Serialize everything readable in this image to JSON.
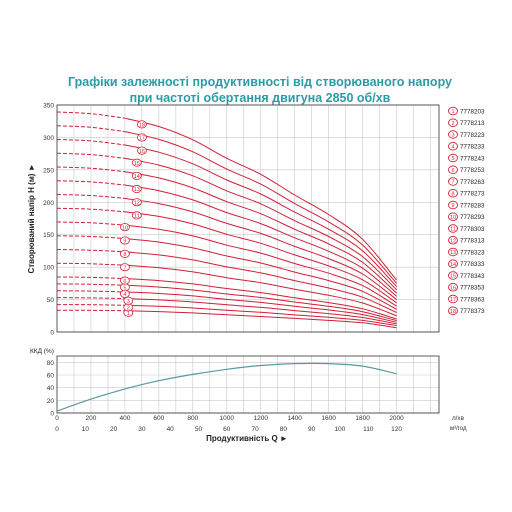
{
  "title_line1": "Графіки залежності продуктивності від створюваного напору",
  "title_line2": "при частоті обертання двигуна 2850 об/хв",
  "chart_data": [
    {
      "type": "line",
      "ylabel": "Створюваний напір H (м)",
      "ylim": [
        0,
        350
      ],
      "yticks": [
        0,
        50,
        100,
        150,
        200,
        250,
        300,
        350
      ],
      "xlim": [
        0,
        2250
      ],
      "x": [
        0,
        200,
        400,
        600,
        800,
        1000,
        1200,
        1400,
        1600,
        1800,
        2000
      ],
      "grid": true,
      "line_color": "#d11f35",
      "series": [
        {
          "name": "1",
          "model": "7778203",
          "values": [
            33.6,
            33.4,
            32.8,
            31.4,
            29.4,
            26.5,
            23.9,
            20.9,
            17.9,
            14.2,
            6.6
          ]
        },
        {
          "name": "2",
          "model": "7778213",
          "values": [
            42.3,
            42.1,
            41.1,
            39.6,
            37.0,
            33.4,
            30.3,
            26.4,
            22.6,
            17.9,
            10.0
          ]
        },
        {
          "name": "3",
          "model": "7778223",
          "values": [
            53.0,
            52.6,
            51.5,
            49.5,
            46.3,
            41.9,
            38.0,
            33.0,
            28.3,
            22.3,
            12.5
          ]
        },
        {
          "name": "4",
          "model": "7778233",
          "values": [
            63.6,
            63.1,
            61.8,
            59.4,
            55.6,
            50.2,
            45.6,
            39.6,
            34.0,
            26.8,
            15.0
          ]
        },
        {
          "name": "5",
          "model": "7778243",
          "values": [
            74.2,
            73.6,
            72.1,
            69.3,
            64.8,
            58.6,
            53.2,
            46.2,
            39.6,
            31.3,
            17.5
          ]
        },
        {
          "name": "6",
          "model": "7778253",
          "values": [
            84.8,
            84.2,
            82.4,
            79.2,
            74.1,
            67.0,
            60.8,
            52.8,
            45.3,
            35.8,
            20.0
          ]
        },
        {
          "name": "7",
          "model": "7778263",
          "values": [
            106.0,
            105.2,
            103.0,
            99.0,
            92.6,
            83.7,
            76.0,
            66.0,
            56.6,
            44.7,
            25.0
          ]
        },
        {
          "name": "8",
          "model": "7778273",
          "values": [
            127.2,
            126.2,
            123.6,
            118.8,
            111.1,
            100.4,
            91.2,
            79.2,
            67.9,
            53.6,
            30.0
          ]
        },
        {
          "name": "9",
          "model": "7778283",
          "values": [
            148.4,
            147.3,
            144.2,
            138.6,
            129.7,
            117.2,
            106.4,
            92.4,
            79.2,
            62.6,
            35.0
          ]
        },
        {
          "name": "10",
          "model": "7778293",
          "values": [
            169.6,
            168.3,
            164.8,
            158.4,
            148.2,
            133.9,
            121.6,
            105.6,
            90.6,
            71.5,
            40.0
          ]
        },
        {
          "name": "11",
          "model": "7778303",
          "values": [
            190.8,
            189.4,
            185.4,
            178.2,
            166.7,
            150.7,
            136.8,
            118.8,
            101.9,
            80.5,
            45.0
          ]
        },
        {
          "name": "12",
          "model": "7778313",
          "values": [
            212.0,
            210.4,
            206.0,
            198.0,
            185.2,
            167.4,
            152.0,
            132.0,
            113.2,
            89.4,
            50.0
          ]
        },
        {
          "name": "13",
          "model": "7778323",
          "values": [
            233.2,
            231.4,
            226.6,
            217.8,
            203.7,
            184.1,
            167.2,
            145.2,
            124.5,
            98.3,
            55.0
          ]
        },
        {
          "name": "14",
          "model": "7778333",
          "values": [
            254.4,
            252.5,
            247.2,
            237.6,
            222.2,
            200.9,
            182.4,
            158.4,
            135.8,
            107.3,
            60.0
          ]
        },
        {
          "name": "15",
          "model": "7778343",
          "values": [
            275.6,
            273.5,
            267.8,
            257.4,
            240.8,
            217.6,
            197.6,
            171.6,
            147.2,
            116.2,
            65.0
          ]
        },
        {
          "name": "16",
          "model": "7778353",
          "values": [
            296.8,
            294.6,
            288.4,
            277.2,
            259.3,
            234.4,
            212.8,
            184.8,
            158.5,
            125.2,
            70.0
          ]
        },
        {
          "name": "17",
          "model": "7778363",
          "values": [
            318.0,
            315.6,
            309.0,
            297.0,
            277.8,
            251.1,
            228.0,
            198.0,
            169.8,
            134.1,
            75.0
          ]
        },
        {
          "name": "18",
          "model": "7778373",
          "values": [
            339.2,
            336.6,
            329.6,
            316.8,
            296.3,
            267.8,
            243.2,
            211.2,
            181.1,
            143.0,
            80.0
          ]
        }
      ]
    },
    {
      "type": "line",
      "ylabel": "ККД (%)",
      "ylim": [
        0,
        90
      ],
      "yticks": [
        0,
        20,
        40,
        60,
        80
      ],
      "xlim": [
        0,
        2250
      ],
      "x": [
        0,
        200,
        400,
        600,
        800,
        1000,
        1200,
        1400,
        1600,
        1800,
        2000
      ],
      "grid": true,
      "line_color": "#5a9a9e",
      "series": [
        {
          "values": [
            3,
            22,
            38,
            51,
            61,
            69,
            75,
            78,
            78,
            74,
            62
          ]
        }
      ]
    }
  ],
  "x_axis": {
    "lpm_ticks": [
      "0",
      "200",
      "400",
      "600",
      "800",
      "1000",
      "1200",
      "1400",
      "1600",
      "1800",
      "2000"
    ],
    "lpm_unit": "л/хв",
    "m3h_ticks": [
      "0",
      "10",
      "20",
      "30",
      "40",
      "50",
      "60",
      "70",
      "80",
      "90",
      "100",
      "110",
      "120"
    ],
    "m3h_unit": "м³/год",
    "label": "Продуктивність  Q  ►"
  },
  "ylabel_arrow": "►"
}
